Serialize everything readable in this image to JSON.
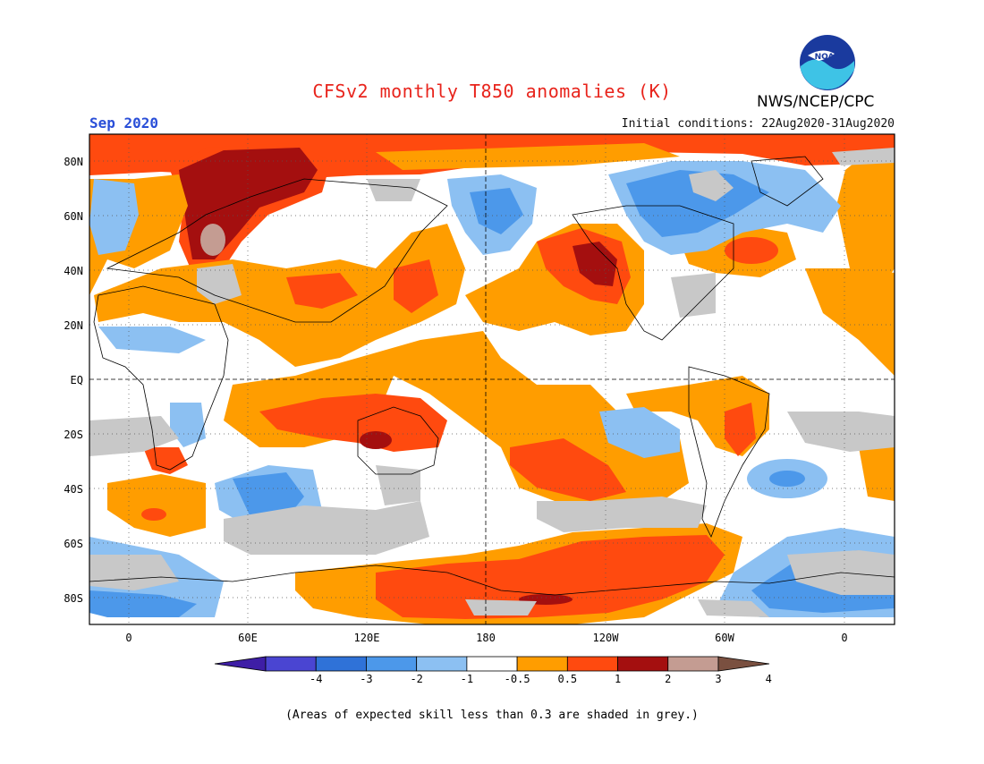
{
  "title": "CFSv2 monthly T850 anomalies (K)",
  "month_label": "Sep 2020",
  "initial_conditions": "Initial conditions: 22Aug2020-31Aug2020",
  "agency": "NWS/NCEP/CPC",
  "logo": {
    "icon": "noaa-logo-icon",
    "text": "NOAA"
  },
  "footnote": "(Areas of expected skill less than 0.3 are shaded in grey.)",
  "axes": {
    "lat_labels": [
      "80N",
      "60N",
      "40N",
      "20N",
      "EQ",
      "20S",
      "40S",
      "60S",
      "80S"
    ],
    "lon_labels": [
      "0",
      "60E",
      "120E",
      "180",
      "120W",
      "60W",
      "0"
    ]
  },
  "colorbar": {
    "tick_labels": [
      "-4",
      "-3",
      "-2",
      "-1",
      "-0.5",
      "0.5",
      "1",
      "2",
      "3",
      "4"
    ],
    "colors": [
      "#3e1ea6",
      "#4a45d2",
      "#2f72d8",
      "#4c98ea",
      "#8cc0f2",
      "#ffffff",
      "#ff9d00",
      "#ff4a0f",
      "#a40f0f",
      "#c49c92",
      "#7a5040"
    ],
    "skill_mask_color": "#c8c8c8"
  }
}
